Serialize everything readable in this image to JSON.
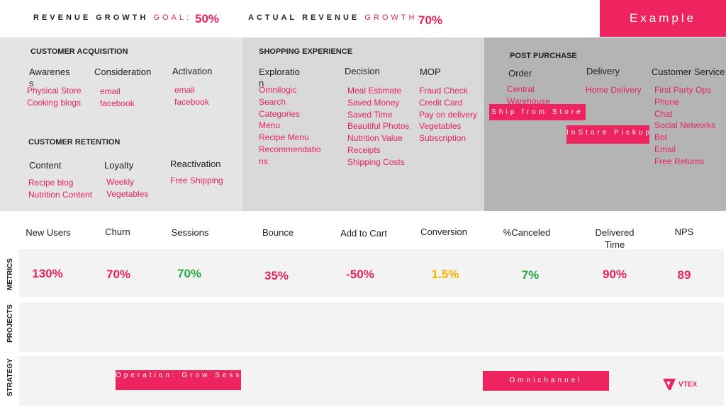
{
  "header": {
    "goal_label_main": "REVENUE GROWTH",
    "goal_label_accent": "GOAL:",
    "goal_value": "50%",
    "actual_label_main": "ACTUAL REVENUE",
    "actual_label_accent": "GROWTH:",
    "actual_value": "70%",
    "example_button": "Example"
  },
  "acquisition": {
    "title": "CUSTOMER ACQUISITION",
    "stages": [
      {
        "label": "Awarenes s",
        "items": [
          "Physical Store",
          "Cooking blogs"
        ]
      },
      {
        "label": "Consideration",
        "items": [
          "email",
          "facebook"
        ]
      },
      {
        "label": "Activation",
        "items": [
          "email",
          "facebook"
        ]
      }
    ]
  },
  "retention": {
    "title": "CUSTOMER RETENTION",
    "stages": [
      {
        "label": "Content",
        "items": [
          "Recipe blog",
          "Nutrition Content"
        ]
      },
      {
        "label": "Loyalty",
        "items": [
          "Weekly",
          "Vegetables"
        ]
      },
      {
        "label": "Reactivation",
        "items": [
          "Free Shipping"
        ]
      }
    ]
  },
  "shopping": {
    "title": "SHOPPING EXPERIENCE",
    "stages": [
      {
        "label": "Exploratio n",
        "items": [
          "Omnilogic",
          "Search",
          "Categories",
          "Menu",
          "Recipe Menu",
          "Recommendatio",
          "ns"
        ]
      },
      {
        "label": "Decision",
        "items": [
          "Meal Estimate",
          "Saved Money",
          "Saved Time",
          "Beautiful Photos",
          "Nutrition Value",
          "Receipts",
          "Shipping Costs"
        ]
      },
      {
        "label": "MOP",
        "items": [
          "Fraud Check",
          "Credit Card",
          "Pay on delivery",
          "Vegetables",
          "Subscription"
        ]
      }
    ]
  },
  "post_purchase": {
    "title": "POST PURCHASE",
    "stages": [
      {
        "label": "Order",
        "items": [
          "Central",
          "Warehouse"
        ]
      },
      {
        "label": "Delivery",
        "items": [
          "Home Delivery"
        ]
      },
      {
        "label": "Customer Service",
        "items": [
          "First Party Ops",
          "Phone",
          "Chat",
          "Social Networks",
          "Bot",
          "Email",
          "Free Returns"
        ]
      }
    ],
    "pill_ship": "Ship from Store",
    "pill_instore": "InStore Pickup"
  },
  "metrics": {
    "side_label": "METRICS",
    "columns": [
      {
        "name": "New Users",
        "value": "130%",
        "color": "#e6235f"
      },
      {
        "name": "Churn",
        "value": "70%",
        "color": "#e6235f"
      },
      {
        "name": "Sessions",
        "value": "70%",
        "color": "#27a844"
      },
      {
        "name": "Bounce",
        "value": "35%",
        "color": "#e6235f"
      },
      {
        "name": "Add to Cart",
        "value": "-50%",
        "color": "#e6235f"
      },
      {
        "name": "Conversion",
        "value": "1.5%",
        "color": "#f5b400"
      },
      {
        "name": "%Canceled",
        "value": "7%",
        "color": "#27a844"
      },
      {
        "name": "Delivered Time",
        "value": "90%",
        "color": "#e6235f"
      },
      {
        "name": "NPS",
        "value": "89",
        "color": "#e6235f"
      }
    ]
  },
  "projects": {
    "side_label": "PROJECTS"
  },
  "strategy": {
    "side_label": "STRATEGY",
    "pill_operation": "Operation: Grow Sessions",
    "pill_omnichannel": "Omnichannel"
  },
  "brand": {
    "logo_text": "VTEX",
    "color": "#ee2460"
  }
}
